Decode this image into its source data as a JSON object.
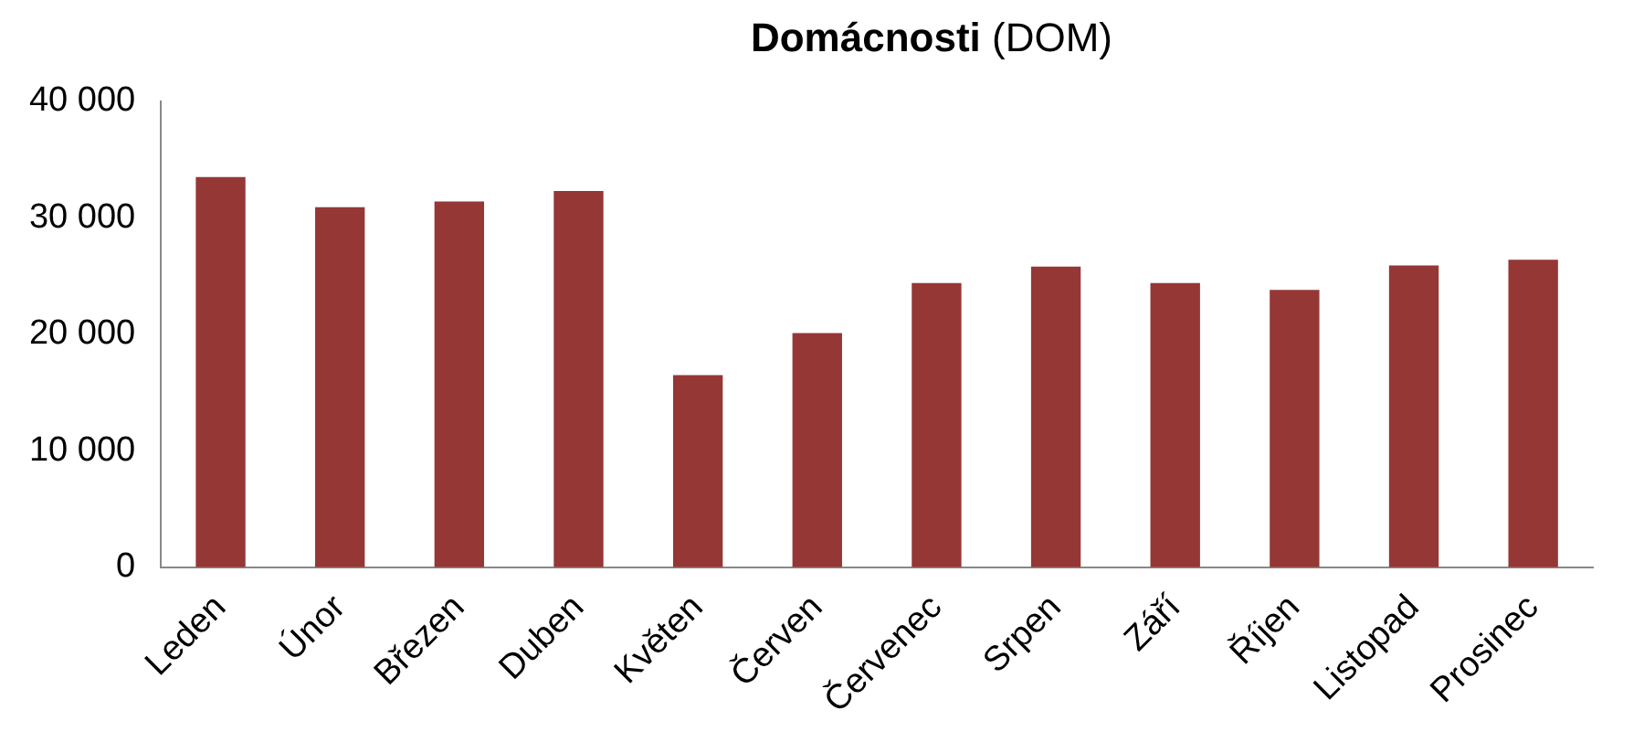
{
  "chart_data": {
    "type": "bar",
    "title": "Domácnosti (DOM)",
    "categories": [
      "Leden",
      "Únor",
      "Březen",
      "Duben",
      "Květen",
      "Červen",
      "Červenec",
      "Srpen",
      "Září",
      "Říjen",
      "Listopad",
      "Prosinec"
    ],
    "values": [
      33500,
      30900,
      31400,
      32300,
      16500,
      20100,
      24400,
      25800,
      24400,
      23800,
      25900,
      26400
    ],
    "color": "#953735",
    "ylim": [
      0,
      40000
    ],
    "yticks": [
      {
        "value": 0,
        "label": "0"
      },
      {
        "value": 10000,
        "label": "10 000"
      },
      {
        "value": 20000,
        "label": "20 000"
      },
      {
        "value": 30000,
        "label": "30 000"
      },
      {
        "value": 40000,
        "label": "40 000"
      }
    ],
    "grid": false,
    "legend": false
  }
}
